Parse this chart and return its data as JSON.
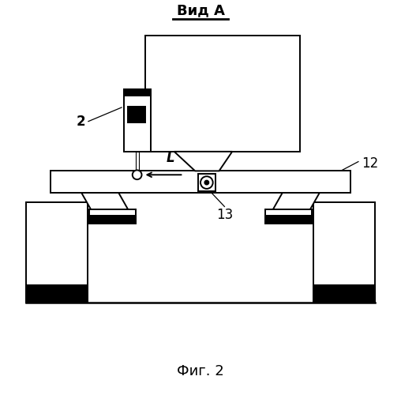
{
  "title": "Вид А",
  "fig_label": "Фиг. 2",
  "label_2": "2",
  "label_12": "12",
  "label_13": "13",
  "label_L": "L",
  "bg_color": "#ffffff",
  "line_color": "#000000",
  "figsize": [
    5.08,
    5.0
  ],
  "dpi": 100
}
